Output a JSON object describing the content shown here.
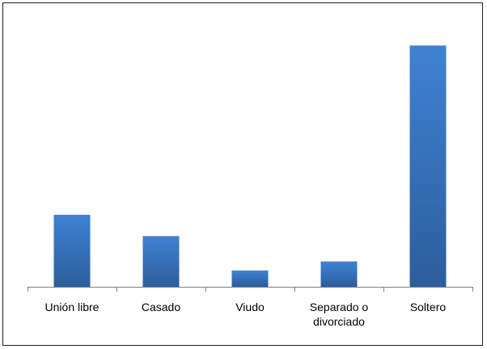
{
  "chart_data": {
    "type": "bar",
    "categories": [
      [
        "Unión libre"
      ],
      [
        "Casado"
      ],
      [
        "Viudo"
      ],
      [
        "Separado o",
        "divorciado"
      ],
      [
        "Soltero"
      ]
    ],
    "values": [
      88,
      62,
      20,
      31,
      295
    ],
    "title": "",
    "xlabel": "",
    "ylabel": "",
    "ylim": [
      0,
      320
    ],
    "grid": false,
    "legend": "none"
  },
  "colors": {
    "bar_top": "#3f82d4",
    "bar_bottom": "#2c5d9c",
    "axis": "#7f7f7f",
    "border": "#1f1f1f"
  }
}
